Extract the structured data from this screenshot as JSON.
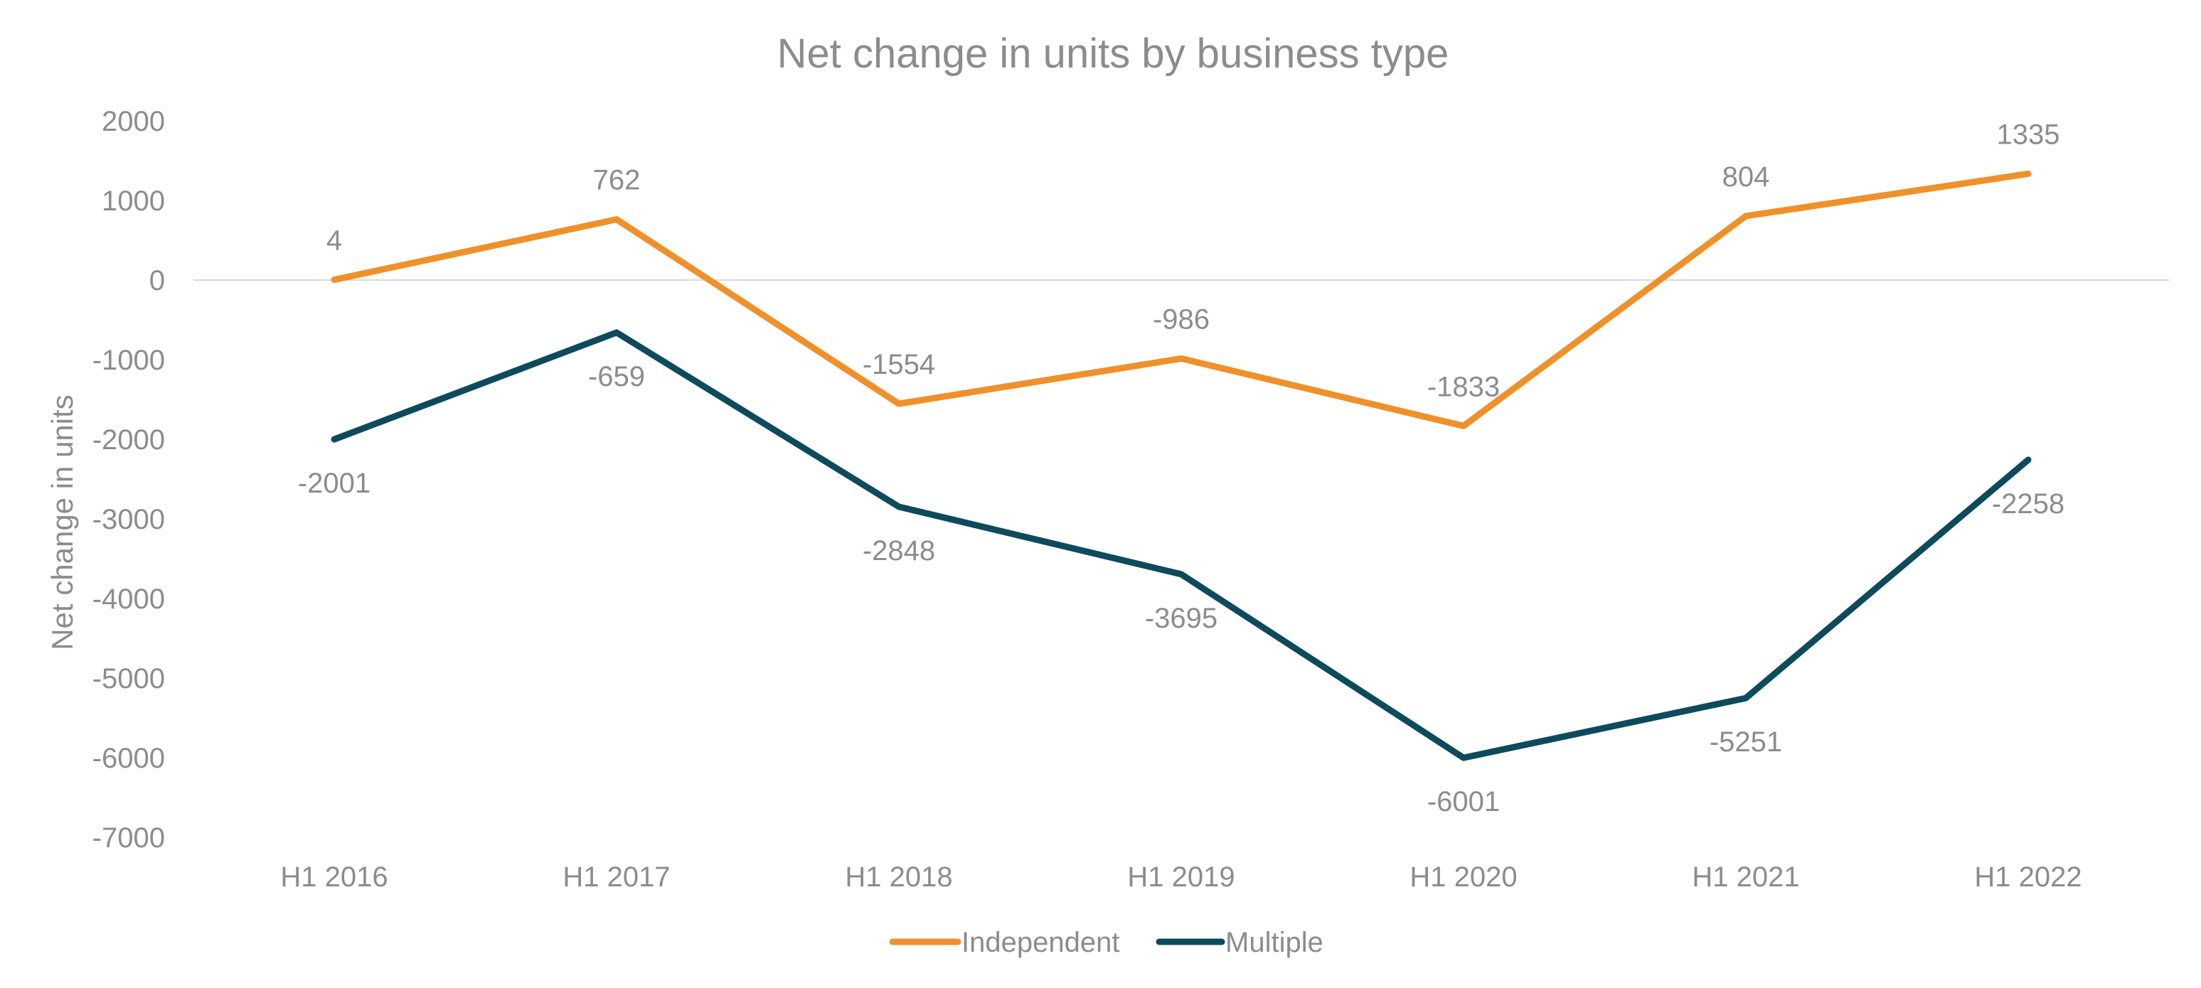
{
  "chart_data": {
    "type": "line",
    "title": "Net change in units by business type",
    "xlabel": "",
    "ylabel": "Net change in units",
    "categories": [
      "H1 2016",
      "H1 2017",
      "H1 2018",
      "H1 2019",
      "H1 2020",
      "H1 2021",
      "H1 2022"
    ],
    "ylim": [
      -7000,
      2000
    ],
    "yticks": [
      "2000",
      "1000",
      "0",
      "-1000",
      "-2000",
      "-3000",
      "-4000",
      "-5000",
      "-6000",
      "-7000"
    ],
    "grid": false,
    "zero_line": true,
    "legend_position": "bottom-center",
    "series": [
      {
        "name": "Independent",
        "color": "#f0902a",
        "values": [
          4,
          762,
          -1554,
          -986,
          -1833,
          804,
          1335
        ],
        "labels": [
          "4",
          "762",
          "-1554",
          "-986",
          "-1833",
          "804",
          "1335"
        ],
        "label_position": "above"
      },
      {
        "name": "Multiple",
        "color": "#0d4a5c",
        "values": [
          -2001,
          -659,
          -2848,
          -3695,
          -6001,
          -5251,
          -2258
        ],
        "labels": [
          "-2001",
          "-659",
          "-2848",
          "-3695",
          "-6001",
          "-5251",
          "-2258"
        ],
        "label_position": "below"
      }
    ]
  }
}
